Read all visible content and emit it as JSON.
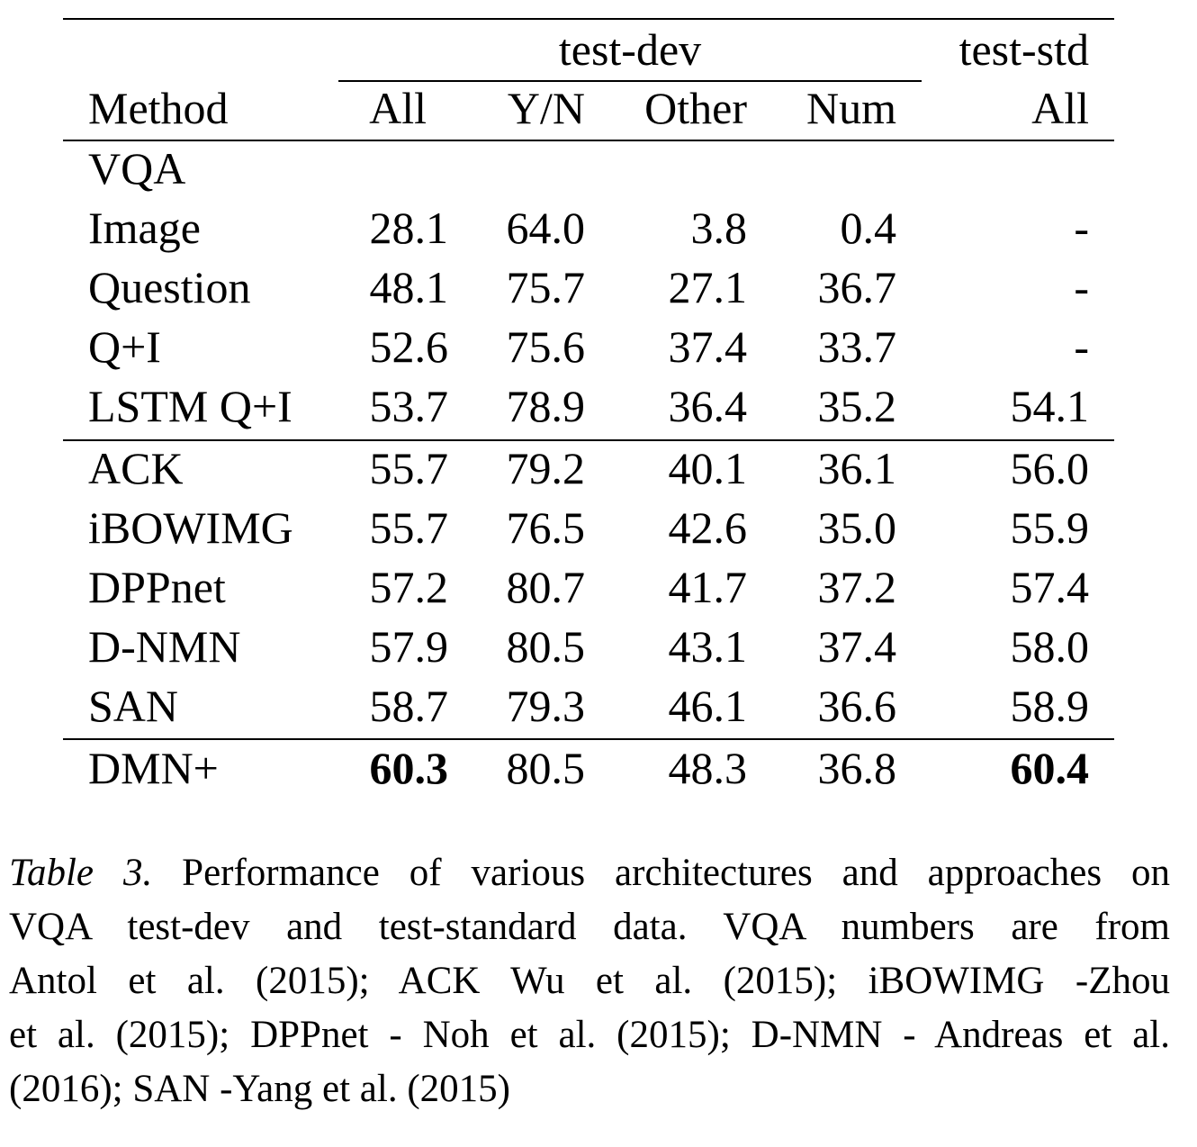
{
  "table": {
    "group_headers": {
      "test_dev": "test-dev",
      "test_std": "test-std"
    },
    "columns": [
      "Method",
      "All",
      "Y/N",
      "Other",
      "Num",
      "All"
    ],
    "section_label": "VQA",
    "rows": [
      {
        "method": "Image",
        "all": "28.1",
        "yn": "64.0",
        "other": "3.8",
        "num": "0.4",
        "std": "-"
      },
      {
        "method": "Question",
        "all": "48.1",
        "yn": "75.7",
        "other": "27.1",
        "num": "36.7",
        "std": "-"
      },
      {
        "method": "Q+I",
        "all": "52.6",
        "yn": "75.6",
        "other": "37.4",
        "num": "33.7",
        "std": "-"
      },
      {
        "method": "LSTM Q+I",
        "all": "53.7",
        "yn": "78.9",
        "other": "36.4",
        "num": "35.2",
        "std": "54.1"
      },
      {
        "method": "ACK",
        "all": "55.7",
        "yn": "79.2",
        "other": "40.1",
        "num": "36.1",
        "std": "56.0"
      },
      {
        "method": "iBOWIMG",
        "all": "55.7",
        "yn": "76.5",
        "other": "42.6",
        "num": "35.0",
        "std": "55.9"
      },
      {
        "method": "DPPnet",
        "all": "57.2",
        "yn": "80.7",
        "other": "41.7",
        "num": "37.2",
        "std": "57.4"
      },
      {
        "method": "D-NMN",
        "all": "57.9",
        "yn": "80.5",
        "other": "43.1",
        "num": "37.4",
        "std": "58.0"
      },
      {
        "method": "SAN",
        "all": "58.7",
        "yn": "79.3",
        "other": "46.1",
        "num": "36.6",
        "std": "58.9"
      },
      {
        "method": "DMN+",
        "all": "60.3",
        "yn": "80.5",
        "other": "48.3",
        "num": "36.8",
        "std": "60.4"
      }
    ]
  },
  "caption": {
    "label": "Table 3.",
    "lines": [
      " Performance of various architectures and approaches on",
      "VQA test-dev and test-standard data.  VQA numbers are from",
      "Antol et al. (2015); ACK  Wu et al. (2015); iBOWIMG -Zhou",
      "et al. (2015); DPPnet - Noh et al. (2015); D-NMN - Andreas et al.",
      "(2016); SAN -Yang et al. (2015)"
    ]
  }
}
